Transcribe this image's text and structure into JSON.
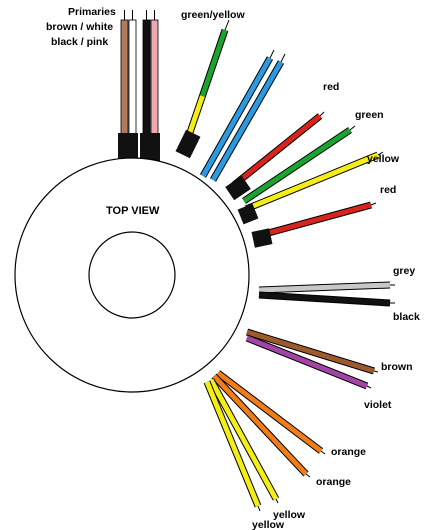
{
  "top_view_label": "TOP VIEW",
  "primaries": {
    "title": "Primaries",
    "line1": "brown / white",
    "line2": "black / pink"
  },
  "leads": [
    {
      "label": "green/yellow",
      "color": "#1aa32e",
      "stripe": "#f5ee14"
    },
    {
      "label": "",
      "color": "#2a9be0"
    },
    {
      "label": "",
      "color": "#2a9be0"
    },
    {
      "label": "red",
      "color": "#d8241c"
    },
    {
      "label": "green",
      "color": "#1aa32e"
    },
    {
      "label": "yellow",
      "color": "#f5ee14"
    },
    {
      "label": "red",
      "color": "#d8241c"
    },
    {
      "label": "grey",
      "color": "#c8c8c8"
    },
    {
      "label": "black",
      "color": "#111111"
    },
    {
      "label": "brown",
      "color": "#9e5a2c"
    },
    {
      "label": "violet",
      "color": "#a245a6"
    },
    {
      "label": "orange",
      "color": "#ef7d1a"
    },
    {
      "label": "orange",
      "color": "#ef7d1a"
    },
    {
      "label": "yellow",
      "color": "#f5ee14"
    },
    {
      "label": "yellow",
      "color": "#f5ee14"
    }
  ],
  "primary_wire_colors": [
    "#b07b5a",
    "#ffffff",
    "#111111",
    "#f0a8b0"
  ]
}
